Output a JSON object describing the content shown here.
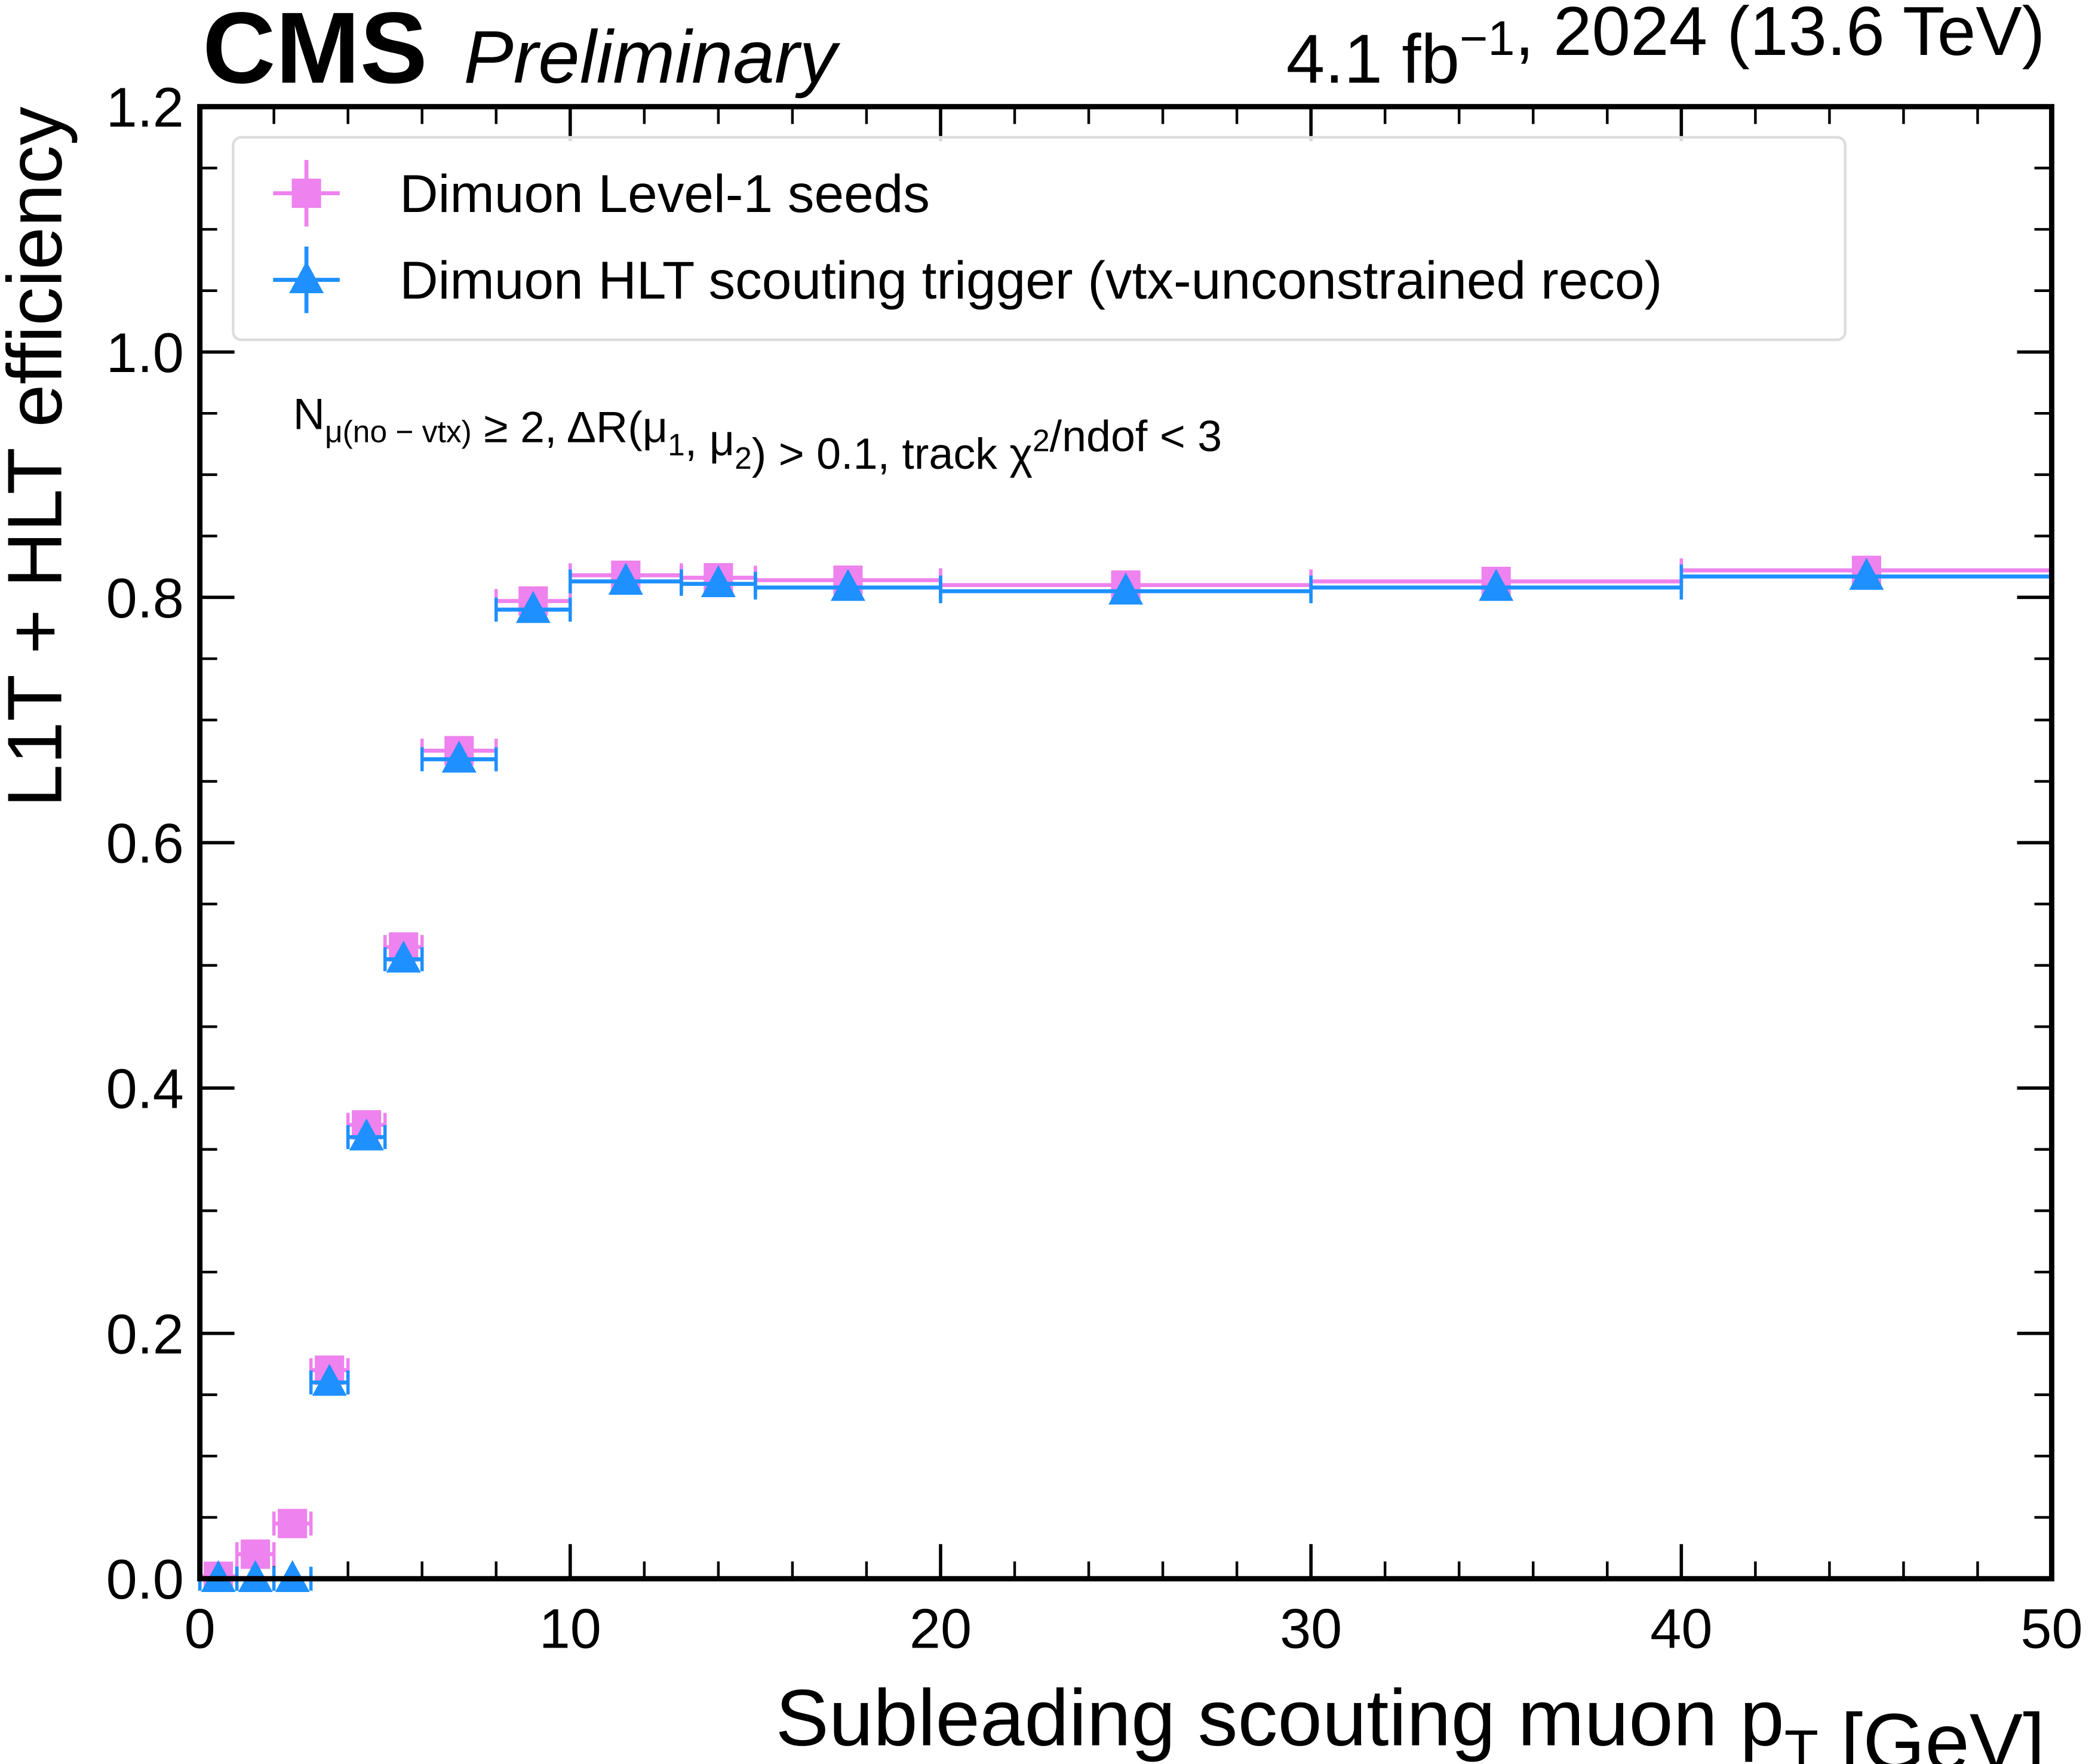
{
  "chart_data": {
    "type": "errorbar",
    "experiment": "CMS",
    "status": "Preliminary",
    "header": [
      {
        "text": "4.1 fb"
      },
      {
        "text": "−1",
        "script": "sup"
      },
      {
        "text": ", 2024 (13.6 TeV)"
      }
    ],
    "annotation": [
      {
        "text": "N"
      },
      {
        "text": "μ(no − vtx)",
        "script": "sub"
      },
      {
        "text": " ≥ 2,  ΔR(μ"
      },
      {
        "text": "1",
        "script": "sub"
      },
      {
        "text": ", μ"
      },
      {
        "text": "2",
        "script": "sub"
      },
      {
        "text": ") > 0.1,  track χ"
      },
      {
        "text": "2",
        "script": "sup"
      },
      {
        "text": "/ndof < 3"
      }
    ],
    "xlabel": [
      {
        "text": "Subleading scouting muon p"
      },
      {
        "text": "T",
        "script": "sub"
      },
      {
        "text": " [GeV]"
      }
    ],
    "ylabel": "L1T + HLT efficiency",
    "x": [
      0.5,
      1.5,
      2.5,
      3.5,
      4.5,
      5.5,
      7,
      9,
      11.5,
      14,
      17.5,
      25,
      35,
      45
    ],
    "bin_edges": [
      0,
      1,
      2,
      3,
      4,
      5,
      6,
      8,
      10,
      13,
      15,
      20,
      30,
      40,
      50
    ],
    "series": [
      {
        "name": "Dimuon Level-1 seeds",
        "color": "#ee82ee",
        "marker": "square",
        "values": [
          0.002,
          0.02,
          0.045,
          0.17,
          0.37,
          0.515,
          0.675,
          0.797,
          0.818,
          0.816,
          0.814,
          0.81,
          0.813,
          0.822
        ]
      },
      {
        "name": "Dimuon HLT scouting trigger (vtx-unconstrained reco)",
        "color": "#1e90ff",
        "marker": "triangle",
        "values": [
          0.0,
          0.0,
          0.0,
          0.16,
          0.36,
          0.505,
          0.668,
          0.79,
          0.813,
          0.811,
          0.808,
          0.805,
          0.808,
          0.817
        ]
      }
    ],
    "xlim": [
      0,
      50
    ],
    "ylim": [
      0,
      1.2
    ],
    "xticks": [
      0,
      10,
      20,
      30,
      40,
      50
    ],
    "yticks": [
      {
        "value": 0,
        "label": "0.0"
      },
      0.2,
      0.4,
      0.6,
      0.8,
      {
        "value": 1,
        "label": "1.0"
      },
      1.2
    ],
    "x_minor_ticks": [
      2,
      4,
      6,
      8,
      12,
      14,
      16,
      18,
      22,
      24,
      26,
      28,
      32,
      34,
      36,
      38,
      42,
      44,
      46,
      48
    ],
    "y_minor_ticks": [
      0.05,
      0.1,
      0.15,
      0.25,
      0.3,
      0.35,
      0.45,
      0.5,
      0.55,
      0.65,
      0.7,
      0.75,
      0.85,
      0.9,
      0.95,
      1.05,
      1.1,
      1.15
    ],
    "legend": "upper left"
  }
}
